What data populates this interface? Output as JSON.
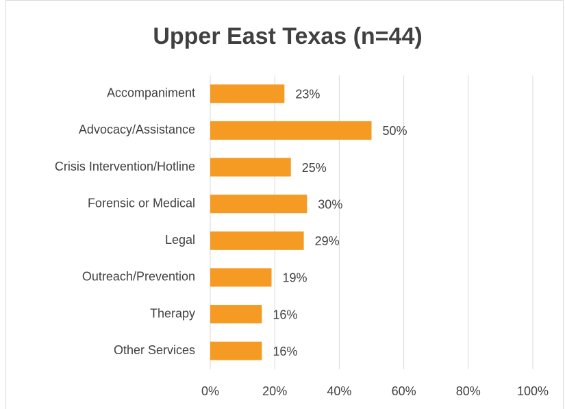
{
  "chart_data": {
    "type": "bar",
    "orientation": "horizontal",
    "title": "Upper East Texas (n=44)",
    "categories": [
      "Accompaniment",
      "Advocacy/Assistance",
      "Crisis Intervention/Hotline",
      "Forensic or Medical",
      "Legal",
      "Outreach/Prevention",
      "Therapy",
      "Other Services"
    ],
    "values": [
      23,
      50,
      25,
      30,
      29,
      19,
      16,
      16
    ],
    "value_labels": [
      "23%",
      "50%",
      "25%",
      "30%",
      "29%",
      "19%",
      "16%",
      "16%"
    ],
    "color": "#f59a23",
    "xlim": [
      0,
      100
    ],
    "xticks": [
      {
        "value": 0,
        "label": "0%"
      },
      {
        "value": 20,
        "label": "20%"
      },
      {
        "value": 40,
        "label": "40%"
      },
      {
        "value": 60,
        "label": "60%"
      },
      {
        "value": 80,
        "label": "80%"
      },
      {
        "value": 100,
        "label": "100%"
      }
    ],
    "grid": true
  }
}
